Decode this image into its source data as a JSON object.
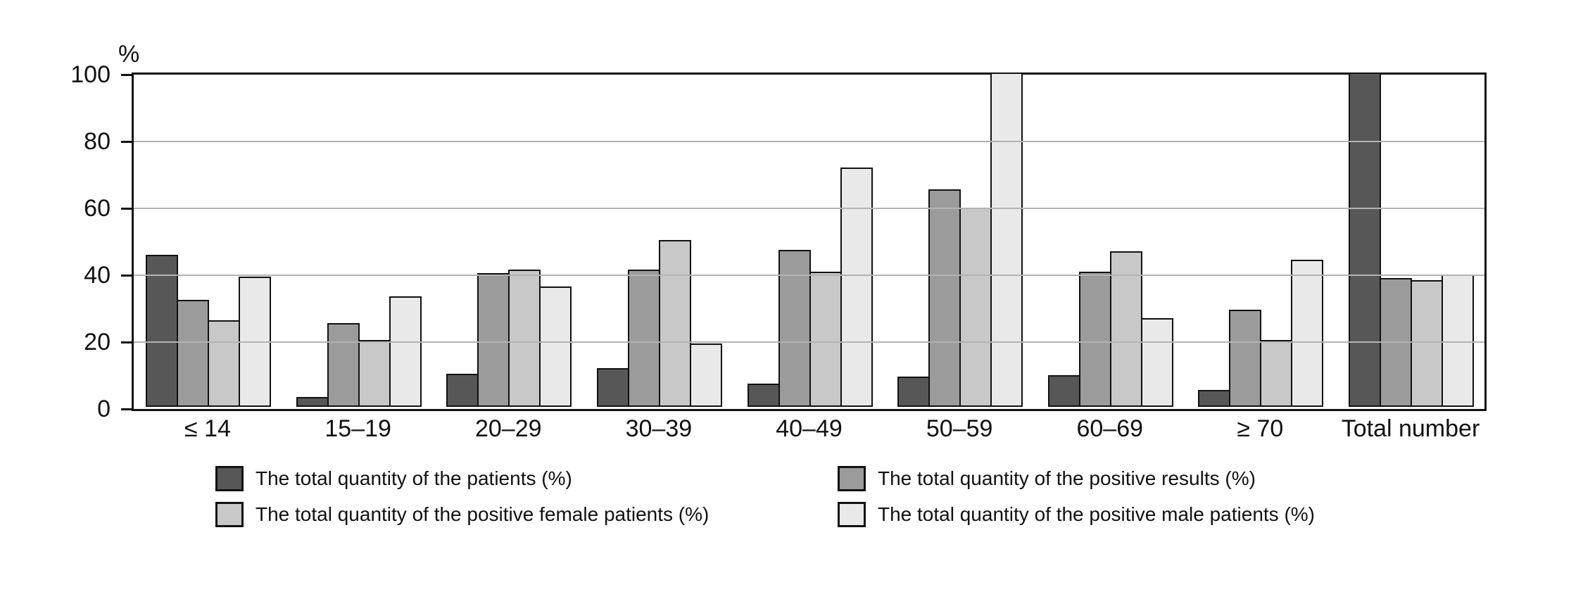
{
  "chart_data": {
    "type": "bar",
    "title": "",
    "ylabel": "%",
    "xlabel": "",
    "ylim": [
      0,
      100
    ],
    "yticks": [
      0,
      20,
      40,
      60,
      80,
      100
    ],
    "grid": true,
    "legend_position": "bottom",
    "categories": [
      "≤ 14",
      "15–19",
      "20–29",
      "30–39",
      "40–49",
      "50–59",
      "60–69",
      "≥ 70",
      "Total number"
    ],
    "series": [
      {
        "name": "The total quantity of the patients (%)",
        "color": "#575757",
        "values": [
          45.5,
          3,
          10,
          11.5,
          7,
          9,
          9.5,
          5,
          100
        ]
      },
      {
        "name": "The total quantity of the  positive results (%)",
        "color": "#9b9b9b",
        "values": [
          32,
          25,
          40,
          41,
          47,
          65,
          40.5,
          29,
          38.5
        ]
      },
      {
        "name": "The total quantity of the positive female patients (%)",
        "color": "#c8c8c8",
        "values": [
          26,
          20,
          41,
          50,
          40.5,
          59.5,
          46.5,
          20,
          38
        ]
      },
      {
        "name": "The total quantity of the positive male patients (%)",
        "color": "#e9e9e9",
        "values": [
          39,
          33,
          36,
          19,
          71.5,
          100,
          26.5,
          44,
          39.5
        ]
      }
    ],
    "colors": {
      "axis": "#111111",
      "bar_border": "#111111",
      "gridline": "#b3b3b3",
      "background": "#ffffff"
    }
  }
}
